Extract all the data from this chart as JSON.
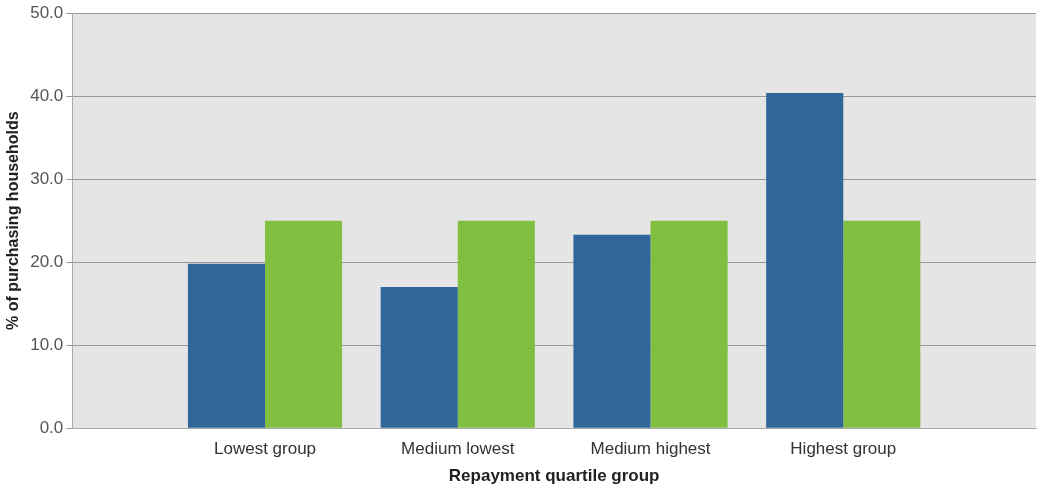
{
  "chart_data": {
    "type": "bar",
    "xlabel": "Repayment quartile group",
    "ylabel": "% of purchasing households",
    "categories": [
      null,
      "Lowest group",
      "Medium lowest",
      "Medium highest",
      "Highest group",
      null
    ],
    "series": [
      {
        "color": "#31669a",
        "values": [
          null,
          19.8,
          17.0,
          23.3,
          40.4,
          null
        ]
      },
      {
        "color": "#80bf40",
        "values": [
          null,
          25.0,
          25.0,
          25.0,
          25.0,
          null
        ]
      }
    ],
    "ylim": [
      0,
      50
    ],
    "yticks": [
      {
        "value": 0,
        "label": "0.0"
      },
      {
        "value": 10,
        "label": "10.0"
      },
      {
        "value": 20,
        "label": "20.0"
      },
      {
        "value": 30,
        "label": "30.0"
      },
      {
        "value": 40,
        "label": "40.0"
      },
      {
        "value": 50,
        "label": "50.0"
      }
    ],
    "grid": "y",
    "legend": false
  }
}
